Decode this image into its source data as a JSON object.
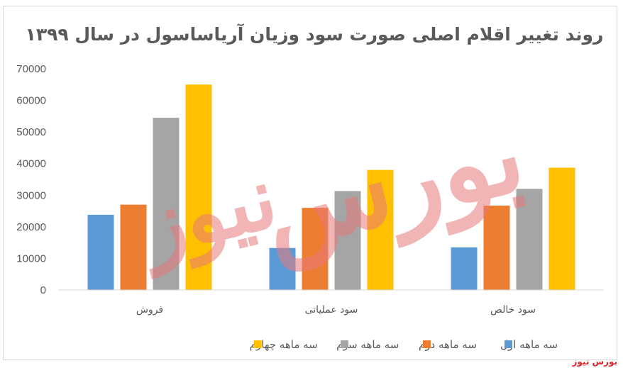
{
  "chart_data": {
    "type": "bar",
    "title": "روند تغییر اقلام اصلی صورت سود وزیان آریاساسول در سال ۱۳۹۹",
    "categories": [
      "فروش",
      "سود عملیاتی",
      "سود خالص"
    ],
    "series": [
      {
        "name": "سه ماهه اول",
        "color": "#5b9bd5",
        "values": [
          23800,
          13300,
          13500
        ]
      },
      {
        "name": "سه ماهه دوم",
        "color": "#ed7d31",
        "values": [
          27000,
          26000,
          26700
        ]
      },
      {
        "name": "سه ماهه سوم",
        "color": "#a5a5a5",
        "values": [
          54500,
          31300,
          32000
        ]
      },
      {
        "name": "سه ماهه چهارم",
        "color": "#ffc000",
        "values": [
          65000,
          38000,
          38700
        ]
      }
    ],
    "ylim": [
      0,
      70000
    ],
    "yticks": [
      0,
      10000,
      20000,
      30000,
      40000,
      50000,
      60000,
      70000
    ],
    "grid": false,
    "legend_position": "bottom"
  },
  "watermark": {
    "line1": "بورس",
    "line2": "نیوز"
  },
  "source": "بورس نیوز"
}
